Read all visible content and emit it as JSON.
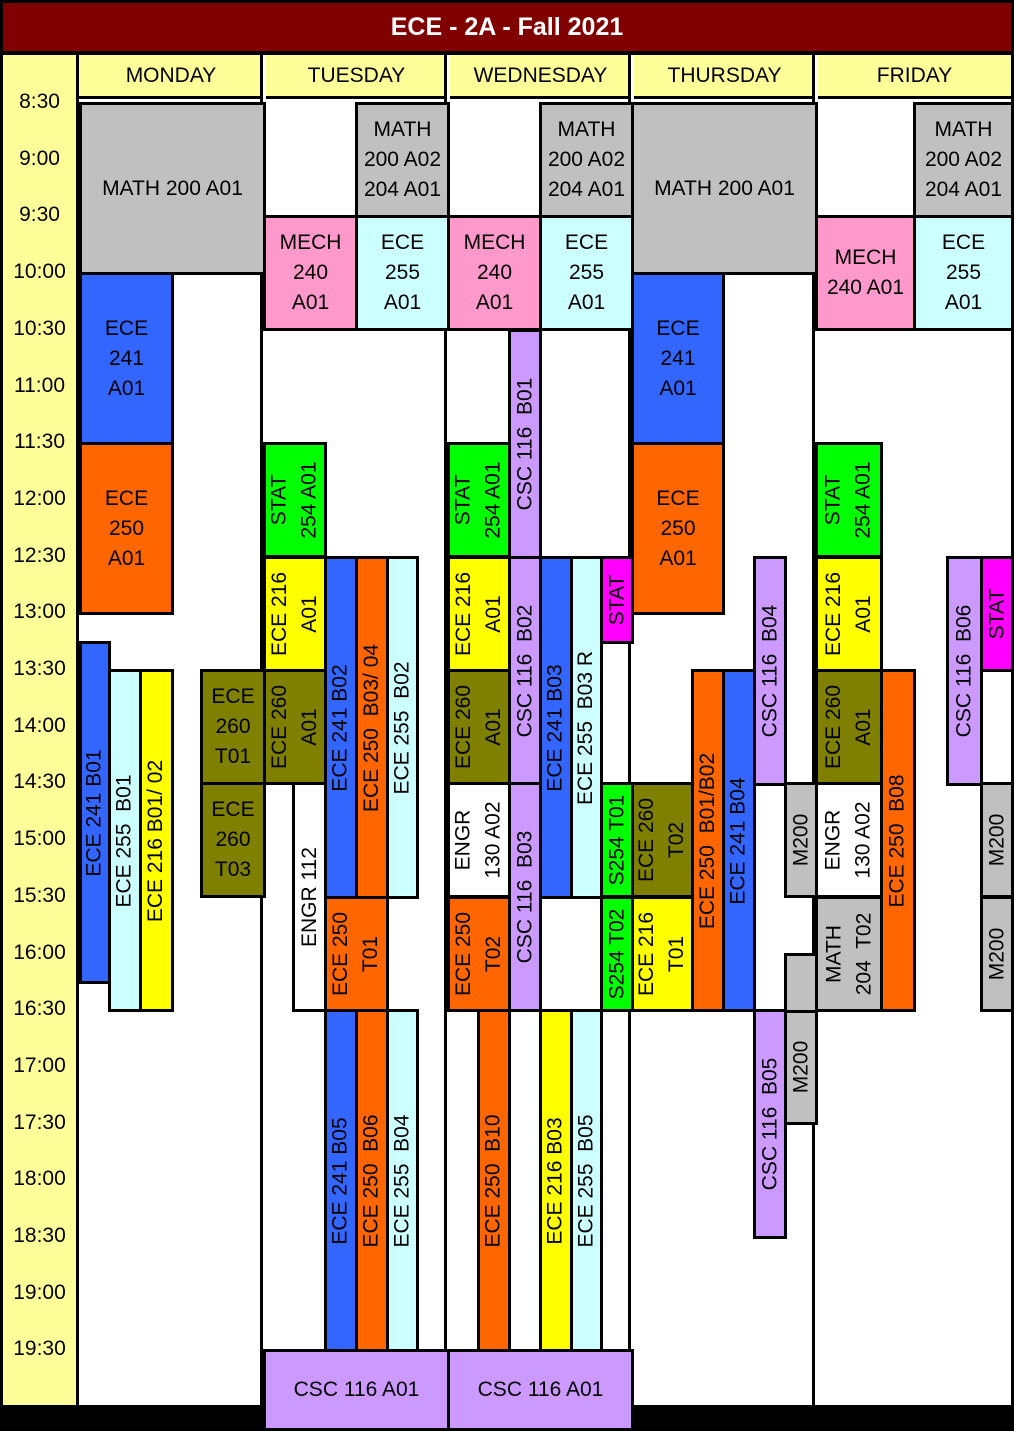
{
  "title": "ECE - 2A - Fall 2021",
  "days": [
    "MONDAY",
    "TUESDAY",
    "WEDNESDAY",
    "THURSDAY",
    "FRIDAY"
  ],
  "times": [
    "8:30",
    "9:00",
    "9:30",
    "10:00",
    "10:30",
    "11:00",
    "11:30",
    "12:00",
    "12:30",
    "13:00",
    "13:30",
    "14:00",
    "14:30",
    "15:00",
    "15:30",
    "16:00",
    "16:30",
    "17:00",
    "17:30",
    "18:00",
    "18:30",
    "19:00",
    "19:30"
  ],
  "colors": {
    "gray": "#c0c0c0",
    "pink": "#ff99cc",
    "lightcyan": "#ccffff",
    "blue": "#3366ff",
    "orange": "#ff6600",
    "green": "#00ff00",
    "yellow": "#ffff00",
    "olive": "#808000",
    "lavender": "#cc99ff",
    "magenta": "#ff00ff",
    "white": "#ffffff"
  },
  "blocks": [
    {
      "name": "math-200-a01-mon",
      "text": "MATH 200 A01",
      "color": "gray"
    },
    {
      "name": "ece-241-a01-mon",
      "text": "ECE\n241\nA01",
      "color": "blue"
    },
    {
      "name": "ece-250-a01-mon",
      "text": "ECE\n250\nA01",
      "color": "orange"
    },
    {
      "name": "ece-241-b01-mon",
      "text": "ECE 241 B01",
      "color": "blue"
    },
    {
      "name": "ece-255-b01-mon",
      "text": "ECE 255  B01",
      "color": "lightcyan"
    },
    {
      "name": "ece-216-b01-02-mon",
      "text": "ECE 216 B01/ 02",
      "color": "yellow"
    },
    {
      "name": "ece-260-t01-mon",
      "text": "ECE 260\nT01",
      "color": "olive"
    },
    {
      "name": "ece-260-t03-mon",
      "text": "ECE 260\nT03",
      "color": "olive"
    },
    {
      "name": "math-200-a02-tue",
      "text": "MATH\n200 A02\n204 A01",
      "color": "gray"
    },
    {
      "name": "mech-240-a01-tue",
      "text": "MECH\n240\nA01",
      "color": "pink"
    },
    {
      "name": "ece-255-a01-tue",
      "text": "ECE\n255\nA01",
      "color": "lightcyan"
    },
    {
      "name": "stat-254-a01-tue",
      "text": "STAT\n254 A01",
      "color": "green"
    },
    {
      "name": "ece-216-a01-tue",
      "text": "ECE 216\nA01",
      "color": "yellow"
    },
    {
      "name": "ece-260-a01-tue",
      "text": "ECE 260\nA01",
      "color": "olive"
    },
    {
      "name": "ece-241-b02-tue",
      "text": "ECE 241 B02",
      "color": "blue"
    },
    {
      "name": "ece-250-b03-04-tue",
      "text": "ECE 250  B03/ 04",
      "color": "orange"
    },
    {
      "name": "ece-255-b02-tue",
      "text": "ECE 255  B02",
      "color": "lightcyan"
    },
    {
      "name": "engr-112-tue",
      "text": "ENGR 112",
      "color": "white"
    },
    {
      "name": "ece-250-t01-tue",
      "text": "ECE 250\nT01",
      "color": "orange"
    },
    {
      "name": "ece-241-b05-tue",
      "text": "ECE 241 B05",
      "color": "blue"
    },
    {
      "name": "ece-250-b06-tue",
      "text": "ECE 250  B06",
      "color": "orange"
    },
    {
      "name": "ece-255-b04-tue",
      "text": "ECE 255  B04",
      "color": "lightcyan"
    },
    {
      "name": "csc-116-a01-tue",
      "text": "CSC 116 A01",
      "color": "lavender"
    },
    {
      "name": "math-200-a02-wed",
      "text": "MATH\n200 A02\n204 A01",
      "color": "gray"
    },
    {
      "name": "mech-240-a01-wed",
      "text": "MECH\n240\nA01",
      "color": "pink"
    },
    {
      "name": "ece-255-a01-wed",
      "text": "ECE\n255\nA01",
      "color": "lightcyan"
    },
    {
      "name": "csc-116-b01-wed",
      "text": "CSC 116  B01",
      "color": "lavender"
    },
    {
      "name": "stat-254-a01-wed",
      "text": "STAT\n254 A01",
      "color": "green"
    },
    {
      "name": "ece-216-a01-wed",
      "text": "ECE 216\nA01",
      "color": "yellow"
    },
    {
      "name": "csc-116-b02-wed",
      "text": "CSC 116  B02",
      "color": "lavender"
    },
    {
      "name": "ece-241-b03-wed",
      "text": "ECE 241 B03",
      "color": "blue"
    },
    {
      "name": "ece-255-b03r-wed",
      "text": "ECE 255  B03 R",
      "color": "lightcyan"
    },
    {
      "name": "stat-wed",
      "text": "STAT",
      "color": "magenta"
    },
    {
      "name": "ece-260-a01-wed",
      "text": "ECE 260\nA01",
      "color": "olive"
    },
    {
      "name": "engr-130-a02-wed",
      "text": "ENGR\n130 A02",
      "color": "white"
    },
    {
      "name": "csc-116-b03-wed",
      "text": "CSC 116  B03",
      "color": "lavender"
    },
    {
      "name": "s254-t01-wed",
      "text": "S254 T01",
      "color": "green"
    },
    {
      "name": "s254-t02-wed",
      "text": "S254 T02",
      "color": "green"
    },
    {
      "name": "ece-250-t02-wed",
      "text": "ECE 250\nT02",
      "color": "orange"
    },
    {
      "name": "ece-250-b10-wed",
      "text": "ECE 250  B10",
      "color": "orange"
    },
    {
      "name": "ece-216-b03-wed",
      "text": "ECE 216 B03",
      "color": "yellow"
    },
    {
      "name": "ece-255-b05-wed",
      "text": "ECE 255  B05",
      "color": "lightcyan"
    },
    {
      "name": "csc-116-a01-wed",
      "text": "CSC 116 A01",
      "color": "lavender"
    },
    {
      "name": "math-200-a01-thu",
      "text": "MATH 200 A01",
      "color": "gray"
    },
    {
      "name": "ece-241-a01-thu",
      "text": "ECE\n241\nA01",
      "color": "blue"
    },
    {
      "name": "ece-250-a01-thu",
      "text": "ECE\n250\nA01",
      "color": "orange"
    },
    {
      "name": "csc-116-b04-thu",
      "text": "CSC 116  B04",
      "color": "lavender"
    },
    {
      "name": "ece-260-t02-thu",
      "text": "ECE 260\nT02",
      "color": "olive"
    },
    {
      "name": "ece-216-t01-thu",
      "text": "ECE 216\nT01",
      "color": "yellow"
    },
    {
      "name": "ece-250-b01-b02-thu",
      "text": "ECE 250  B01/B02",
      "color": "orange"
    },
    {
      "name": "ece-241-b04-thu",
      "text": "ECE 241 B04",
      "color": "blue"
    },
    {
      "name": "m200-thu-1",
      "text": "M200",
      "color": "gray"
    },
    {
      "name": "m200-thu-2",
      "text": "M200",
      "color": "gray"
    },
    {
      "name": "csc-116-b05-thu",
      "text": "CSC 116  B05",
      "color": "lavender"
    },
    {
      "name": "gray-slot-thu",
      "text": "",
      "color": "gray"
    },
    {
      "name": "math-200-a02-fri",
      "text": "MATH\n200 A02\n204 A01",
      "color": "gray"
    },
    {
      "name": "mech-240-a01-fri",
      "text": "MECH\n240 A01",
      "color": "pink"
    },
    {
      "name": "ece-255-a01-fri",
      "text": "ECE\n255\nA01",
      "color": "lightcyan"
    },
    {
      "name": "stat-254-a01-fri",
      "text": "STAT\n254 A01",
      "color": "green"
    },
    {
      "name": "ece-216-a01-fri",
      "text": "ECE 216\nA01",
      "color": "yellow"
    },
    {
      "name": "ece-260-a01-fri",
      "text": "ECE 260\nA01",
      "color": "olive"
    },
    {
      "name": "engr-130-a02-fri",
      "text": "ENGR\n130 A02",
      "color": "white"
    },
    {
      "name": "math-204-t02-fri",
      "text": "MATH\n204  T02",
      "color": "gray"
    },
    {
      "name": "ece-250-b08-fri",
      "text": "ECE 250  B08",
      "color": "orange"
    },
    {
      "name": "csc-116-b06-fri",
      "text": "CSC 116  B06",
      "color": "lavender"
    },
    {
      "name": "stat-fri",
      "text": "STAT",
      "color": "magenta"
    },
    {
      "name": "m200-fri-1",
      "text": "M200",
      "color": "gray"
    },
    {
      "name": "m200-fri-2",
      "text": "M200",
      "color": "gray"
    }
  ]
}
